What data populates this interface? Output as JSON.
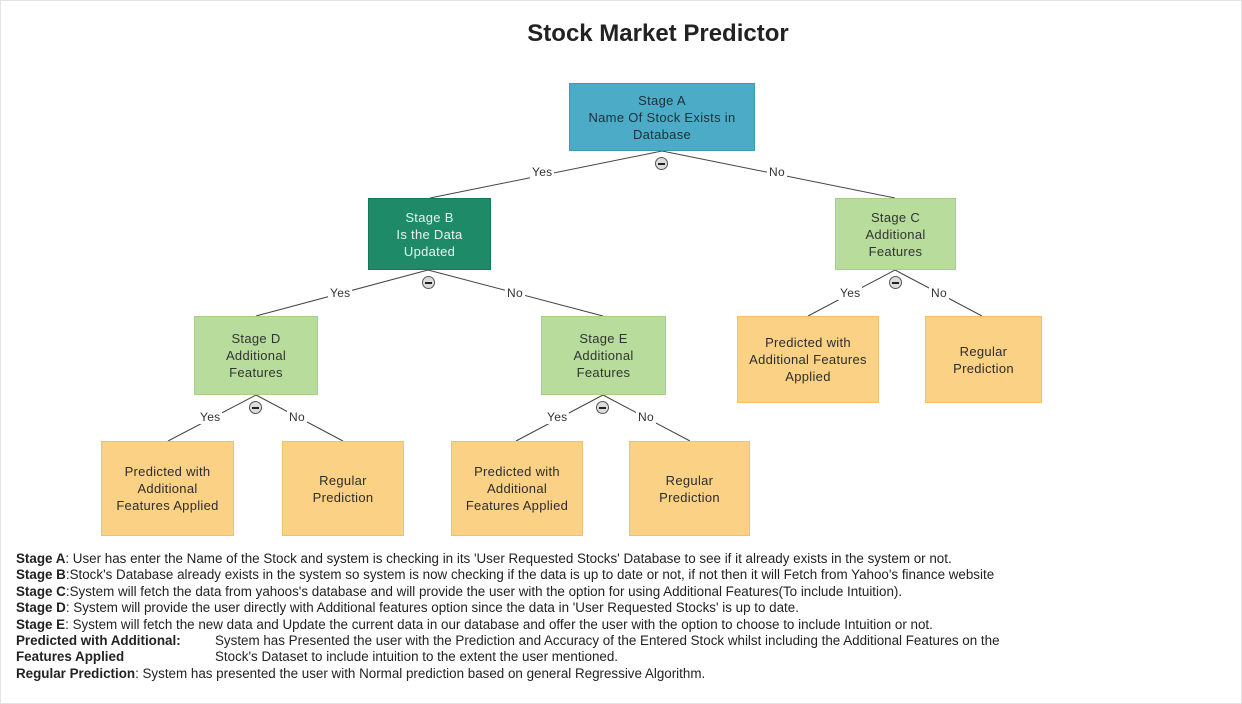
{
  "title": "Stock Market Predictor",
  "nodes": {
    "a": {
      "line1": "Stage A",
      "line2": "Name Of Stock Exists in",
      "line3": "Database"
    },
    "b": {
      "line1": "Stage B",
      "line2": "Is the Data",
      "line3": "Updated"
    },
    "c": {
      "line1": "Stage C",
      "line2": "Additional",
      "line3": "Features"
    },
    "d": {
      "line1": "Stage D",
      "line2": "Additional",
      "line3": "Features"
    },
    "e": {
      "line1": "Stage E",
      "line2": "Additional",
      "line3": "Features"
    },
    "c_yes": {
      "line1": "Predicted with",
      "line2": "Additional Features",
      "line3": "Applied"
    },
    "c_no": {
      "line1": "Regular",
      "line2": "Prediction"
    },
    "d_yes": {
      "line1": "Predicted with",
      "line2": "Additional",
      "line3": "Features Applied"
    },
    "d_no": {
      "line1": "Regular",
      "line2": "Prediction"
    },
    "e_yes": {
      "line1": "Predicted with",
      "line2": "Additional",
      "line3": "Features Applied"
    },
    "e_no": {
      "line1": "Regular",
      "line2": "Prediction"
    }
  },
  "edge_labels": {
    "yes": "Yes",
    "no": "No"
  },
  "legend": {
    "a": {
      "term": "Stage A",
      "text": ": User has enter the Name of the Stock and system is checking in its 'User Requested Stocks' Database to see if it already exists in the system or not."
    },
    "b": {
      "term": "Stage B",
      "text": ":Stock's Database already exists in the system so system is now checking if the data is up to date or not, if not then it will Fetch from Yahoo's finance website"
    },
    "c": {
      "term": "Stage C",
      "text": ":System will fetch the data from yahoos's database and will provide the user with the option for using Additional Features(To include Intuition)."
    },
    "d": {
      "term": "Stage D",
      "text": ": System will provide the user directly with Additional features option since the data in 'User Requested Stocks' is up to date."
    },
    "e": {
      "term": "Stage E",
      "text": ": System will fetch the new data and Update the current data in our database and offer the user with the option to choose to include Intuition or not."
    },
    "pwa": {
      "term1": "Predicted with Additional:",
      "term2": "Features Applied",
      "text1": "System has Presented the user with the Prediction and Accuracy of the Entered Stock whilst including the Additional Features on the",
      "text2": "Stock's Dataset to include intuition to the extent the user mentioned."
    },
    "rp": {
      "term": "Regular Prediction",
      "text": ": System has presented the user with Normal prediction based on general Regressive Algorithm."
    }
  },
  "colors": {
    "stage_a": "#4cacc8",
    "stage_b": "#1f8a67",
    "stage_green": "#b7dc9c",
    "outcome": "#fbd285"
  }
}
